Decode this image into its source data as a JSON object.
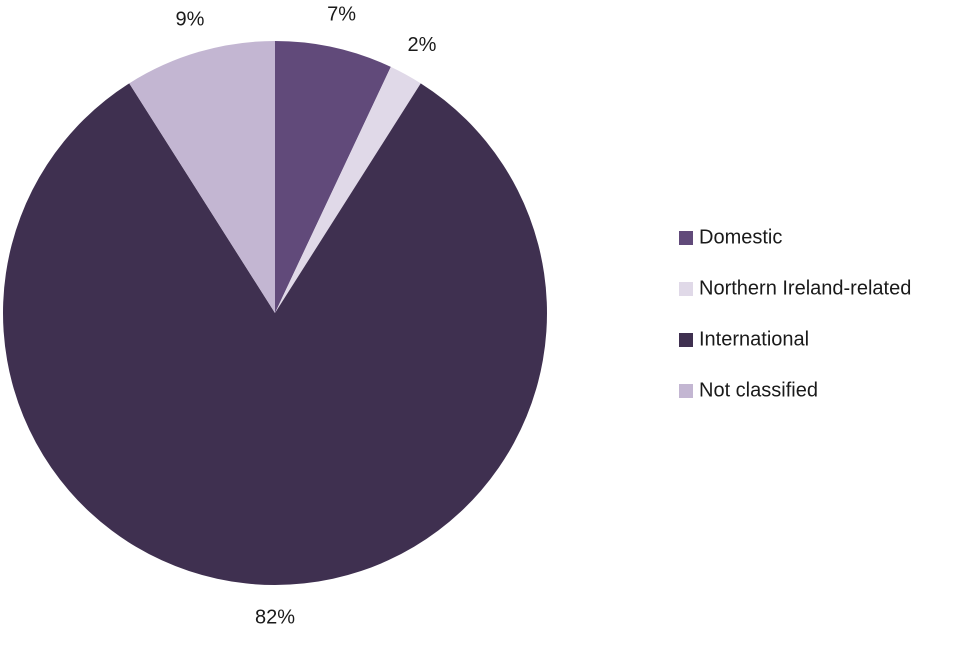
{
  "chart_data": {
    "type": "pie",
    "categories": [
      "Domestic",
      "Northern Ireland-related",
      "International",
      "Not classified"
    ],
    "values": [
      7,
      2,
      82,
      9
    ],
    "value_labels": [
      "7%",
      "2%",
      "82%",
      "9%"
    ],
    "colors": [
      "#614a7a",
      "#e0d9e8",
      "#3f3050",
      "#c3b6d2"
    ],
    "legend": "right"
  }
}
